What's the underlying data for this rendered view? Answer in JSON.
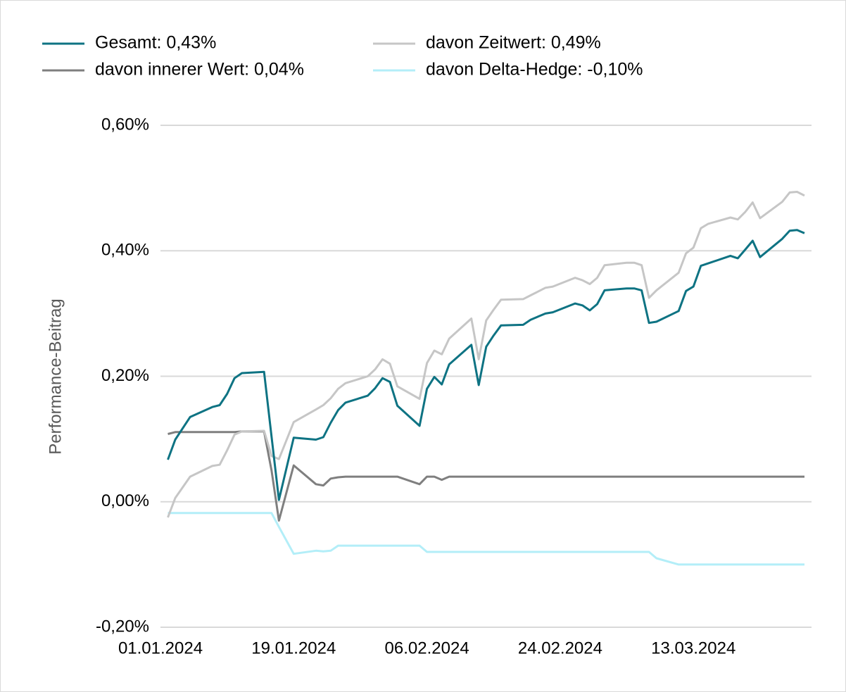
{
  "chart_data": {
    "type": "line",
    "y_label": "Performance-Beitrag",
    "x": [
      "02.01.2024",
      "03.01.2024",
      "05.01.2024",
      "08.01.2024",
      "09.01.2024",
      "10.01.2024",
      "11.01.2024",
      "12.01.2024",
      "15.01.2024",
      "16.01.2024",
      "17.01.2024",
      "19.01.2024",
      "22.01.2024",
      "23.01.2024",
      "24.01.2024",
      "25.01.2024",
      "26.01.2024",
      "29.01.2024",
      "30.01.2024",
      "31.01.2024",
      "01.02.2024",
      "02.02.2024",
      "05.02.2024",
      "06.02.2024",
      "07.02.2024",
      "08.02.2024",
      "09.02.2024",
      "12.02.2024",
      "13.02.2024",
      "14.02.2024",
      "15.02.2024",
      "16.02.2024",
      "19.02.2024",
      "20.02.2024",
      "21.02.2024",
      "22.02.2024",
      "23.02.2024",
      "26.02.2024",
      "27.02.2024",
      "28.02.2024",
      "29.02.2024",
      "01.03.2024",
      "04.03.2024",
      "05.03.2024",
      "06.03.2024",
      "07.03.2024",
      "08.03.2024",
      "11.03.2024",
      "12.03.2024",
      "13.03.2024",
      "14.03.2024",
      "15.03.2024",
      "18.03.2024",
      "19.03.2024",
      "20.03.2024",
      "21.03.2024",
      "22.03.2024",
      "25.03.2024",
      "26.03.2024",
      "27.03.2024",
      "28.03.2024"
    ],
    "series": [
      {
        "name": "Gesamt: 0,43%",
        "color": "#0e7383",
        "values": [
          0.067,
          0.099,
          0.135,
          0.151,
          0.154,
          0.172,
          0.197,
          0.205,
          0.207,
          0.104,
          0.003,
          0.102,
          0.099,
          0.103,
          0.126,
          0.146,
          0.158,
          0.169,
          0.181,
          0.197,
          0.191,
          0.153,
          0.121,
          0.18,
          0.199,
          0.187,
          0.219,
          0.25,
          0.186,
          0.247,
          0.265,
          0.281,
          0.282,
          0.29,
          0.295,
          0.3,
          0.302,
          0.316,
          0.313,
          0.305,
          0.315,
          0.337,
          0.34,
          0.34,
          0.337,
          0.285,
          0.287,
          0.304,
          0.336,
          0.343,
          0.376,
          0.38,
          0.392,
          0.388,
          0.402,
          0.416,
          0.39,
          0.419,
          0.432,
          0.433,
          0.428
        ]
      },
      {
        "name": "davon Zeitwert: 0,49%",
        "color": "#c6c6c6",
        "values": [
          -0.025,
          0.006,
          0.04,
          0.057,
          0.059,
          0.082,
          0.107,
          0.112,
          0.113,
          0.073,
          0.068,
          0.127,
          0.147,
          0.154,
          0.165,
          0.18,
          0.189,
          0.2,
          0.211,
          0.227,
          0.22,
          0.184,
          0.164,
          0.221,
          0.241,
          0.235,
          0.26,
          0.292,
          0.227,
          0.289,
          0.306,
          0.322,
          0.323,
          0.329,
          0.335,
          0.341,
          0.343,
          0.357,
          0.353,
          0.347,
          0.357,
          0.377,
          0.381,
          0.381,
          0.377,
          0.325,
          0.337,
          0.365,
          0.396,
          0.405,
          0.436,
          0.443,
          0.453,
          0.45,
          0.462,
          0.477,
          0.452,
          0.478,
          0.493,
          0.494,
          0.488
        ]
      },
      {
        "name": "davon innerer Wert: 0,04%",
        "color": "#7f7f7f",
        "values": [
          0.108,
          0.111,
          0.111,
          0.111,
          0.111,
          0.111,
          0.111,
          0.112,
          0.112,
          0.05,
          -0.03,
          0.058,
          0.028,
          0.026,
          0.037,
          0.039,
          0.04,
          0.04,
          0.04,
          0.04,
          0.04,
          0.04,
          0.028,
          0.04,
          0.04,
          0.035,
          0.04,
          0.04,
          0.04,
          0.04,
          0.04,
          0.04,
          0.04,
          0.04,
          0.04,
          0.04,
          0.04,
          0.04,
          0.04,
          0.04,
          0.04,
          0.04,
          0.04,
          0.04,
          0.04,
          0.04,
          0.04,
          0.04,
          0.04,
          0.04,
          0.04,
          0.04,
          0.04,
          0.04,
          0.04,
          0.04,
          0.04,
          0.04,
          0.04,
          0.04,
          0.04
        ]
      },
      {
        "name": "davon Delta-Hedge: -0,10%",
        "color": "#b3eef8",
        "values": [
          -0.018,
          -0.018,
          -0.018,
          -0.018,
          -0.018,
          -0.018,
          -0.018,
          -0.018,
          -0.018,
          -0.018,
          -0.04,
          -0.083,
          -0.078,
          -0.079,
          -0.078,
          -0.07,
          -0.07,
          -0.07,
          -0.07,
          -0.07,
          -0.07,
          -0.07,
          -0.07,
          -0.08,
          -0.08,
          -0.08,
          -0.08,
          -0.08,
          -0.08,
          -0.08,
          -0.08,
          -0.08,
          -0.08,
          -0.08,
          -0.08,
          -0.08,
          -0.08,
          -0.08,
          -0.08,
          -0.08,
          -0.08,
          -0.08,
          -0.08,
          -0.08,
          -0.08,
          -0.08,
          -0.09,
          -0.1,
          -0.1,
          -0.1,
          -0.1,
          -0.1,
          -0.1,
          -0.1,
          -0.1,
          -0.1,
          -0.1,
          -0.1,
          -0.1,
          -0.1,
          -0.1
        ]
      }
    ],
    "legend_order": [
      0,
      1,
      2,
      3
    ],
    "xlim": [
      "01.01.2024",
      "28.03.2024"
    ],
    "xticks": [
      "01.01.2024",
      "19.01.2024",
      "06.02.2024",
      "24.02.2024",
      "13.03.2024"
    ],
    "ylim": [
      -0.2,
      0.6
    ],
    "yticks": [
      {
        "value": -0.2,
        "label": "-0,20%"
      },
      {
        "value": 0,
        "label": "0,00%"
      },
      {
        "value": 0.2,
        "label": "0,20%"
      },
      {
        "value": 0.4,
        "label": "0,40%"
      },
      {
        "value": 0.6,
        "label": "0,60%"
      }
    ],
    "grid": true
  }
}
